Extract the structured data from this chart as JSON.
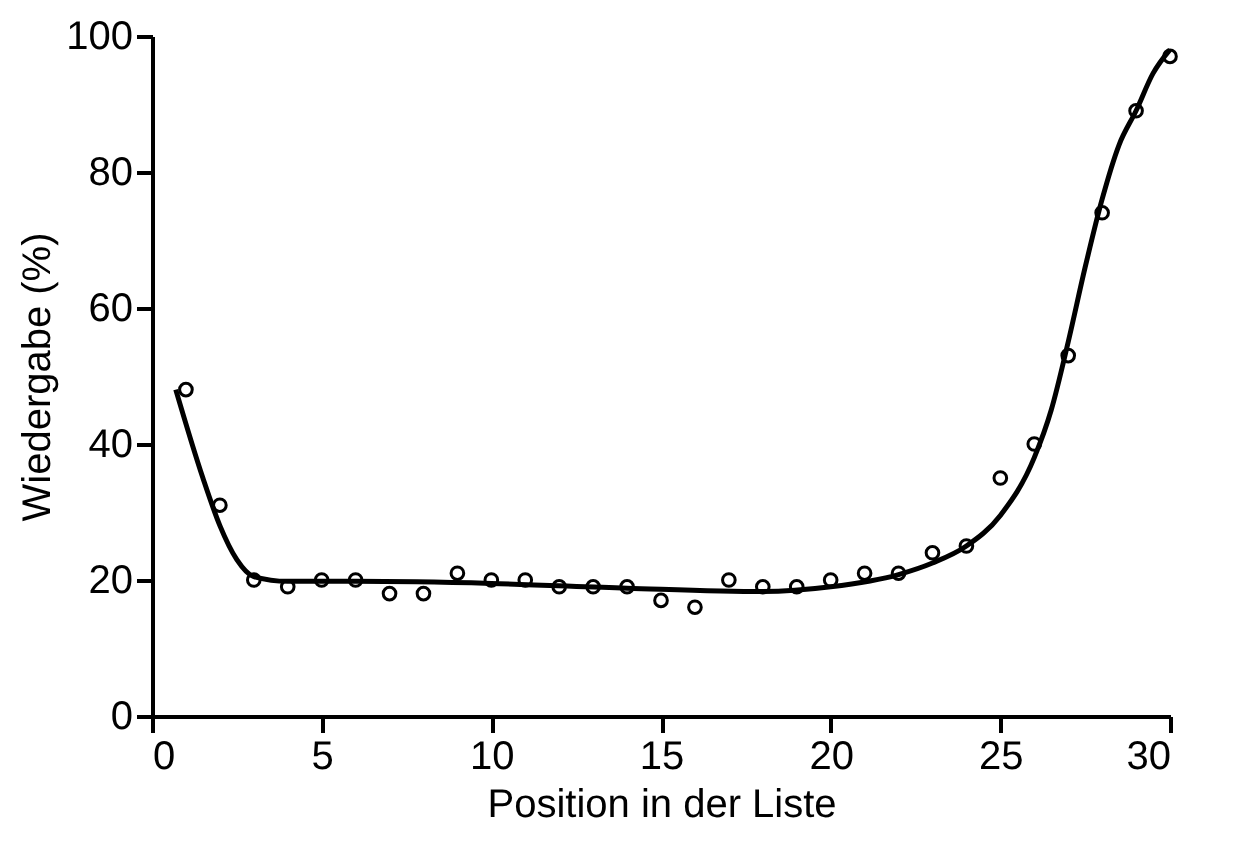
{
  "chart_data": {
    "type": "scatter",
    "xlabel": "Position in der Liste",
    "ylabel": "Wiedergabe (%)",
    "xlim": [
      0,
      30
    ],
    "xticks": [
      0,
      5,
      10,
      15,
      20,
      25,
      30
    ],
    "ylim": [
      0,
      100
    ],
    "yticks": [
      0,
      20,
      40,
      60,
      80,
      100
    ],
    "grid": false,
    "series": [
      {
        "marker": "circle",
        "color": "#000000",
        "x": [
          1,
          2,
          3,
          4,
          5,
          6,
          7,
          8,
          9,
          10,
          11,
          12,
          13,
          14,
          15,
          16,
          17,
          18,
          19,
          20,
          21,
          22,
          23,
          24,
          25,
          26,
          27,
          28,
          29,
          30
        ],
        "values": [
          48,
          31,
          20,
          19,
          20,
          20,
          18,
          18,
          21,
          20,
          20,
          19,
          19,
          19,
          17,
          16,
          20,
          19,
          19,
          20,
          21,
          21,
          24,
          25,
          35,
          40,
          53,
          74,
          89,
          97
        ]
      },
      {
        "type": "line",
        "marker": "none",
        "line_style": "solid",
        "color": "#000000",
        "x": [
          0.7,
          1.5,
          2,
          2.5,
          3,
          4,
          6,
          10,
          14,
          18,
          20,
          22,
          23,
          24,
          25,
          26,
          26.5,
          27,
          27.5,
          28,
          28.5,
          29,
          29.5,
          30
        ],
        "values": [
          48,
          35,
          28,
          23,
          20.5,
          19.8,
          19.8,
          19.5,
          18.8,
          18.3,
          19,
          20.8,
          22.5,
          25,
          29.5,
          38,
          45,
          55,
          66,
          76,
          84,
          89,
          94.5,
          98
        ]
      }
    ]
  }
}
